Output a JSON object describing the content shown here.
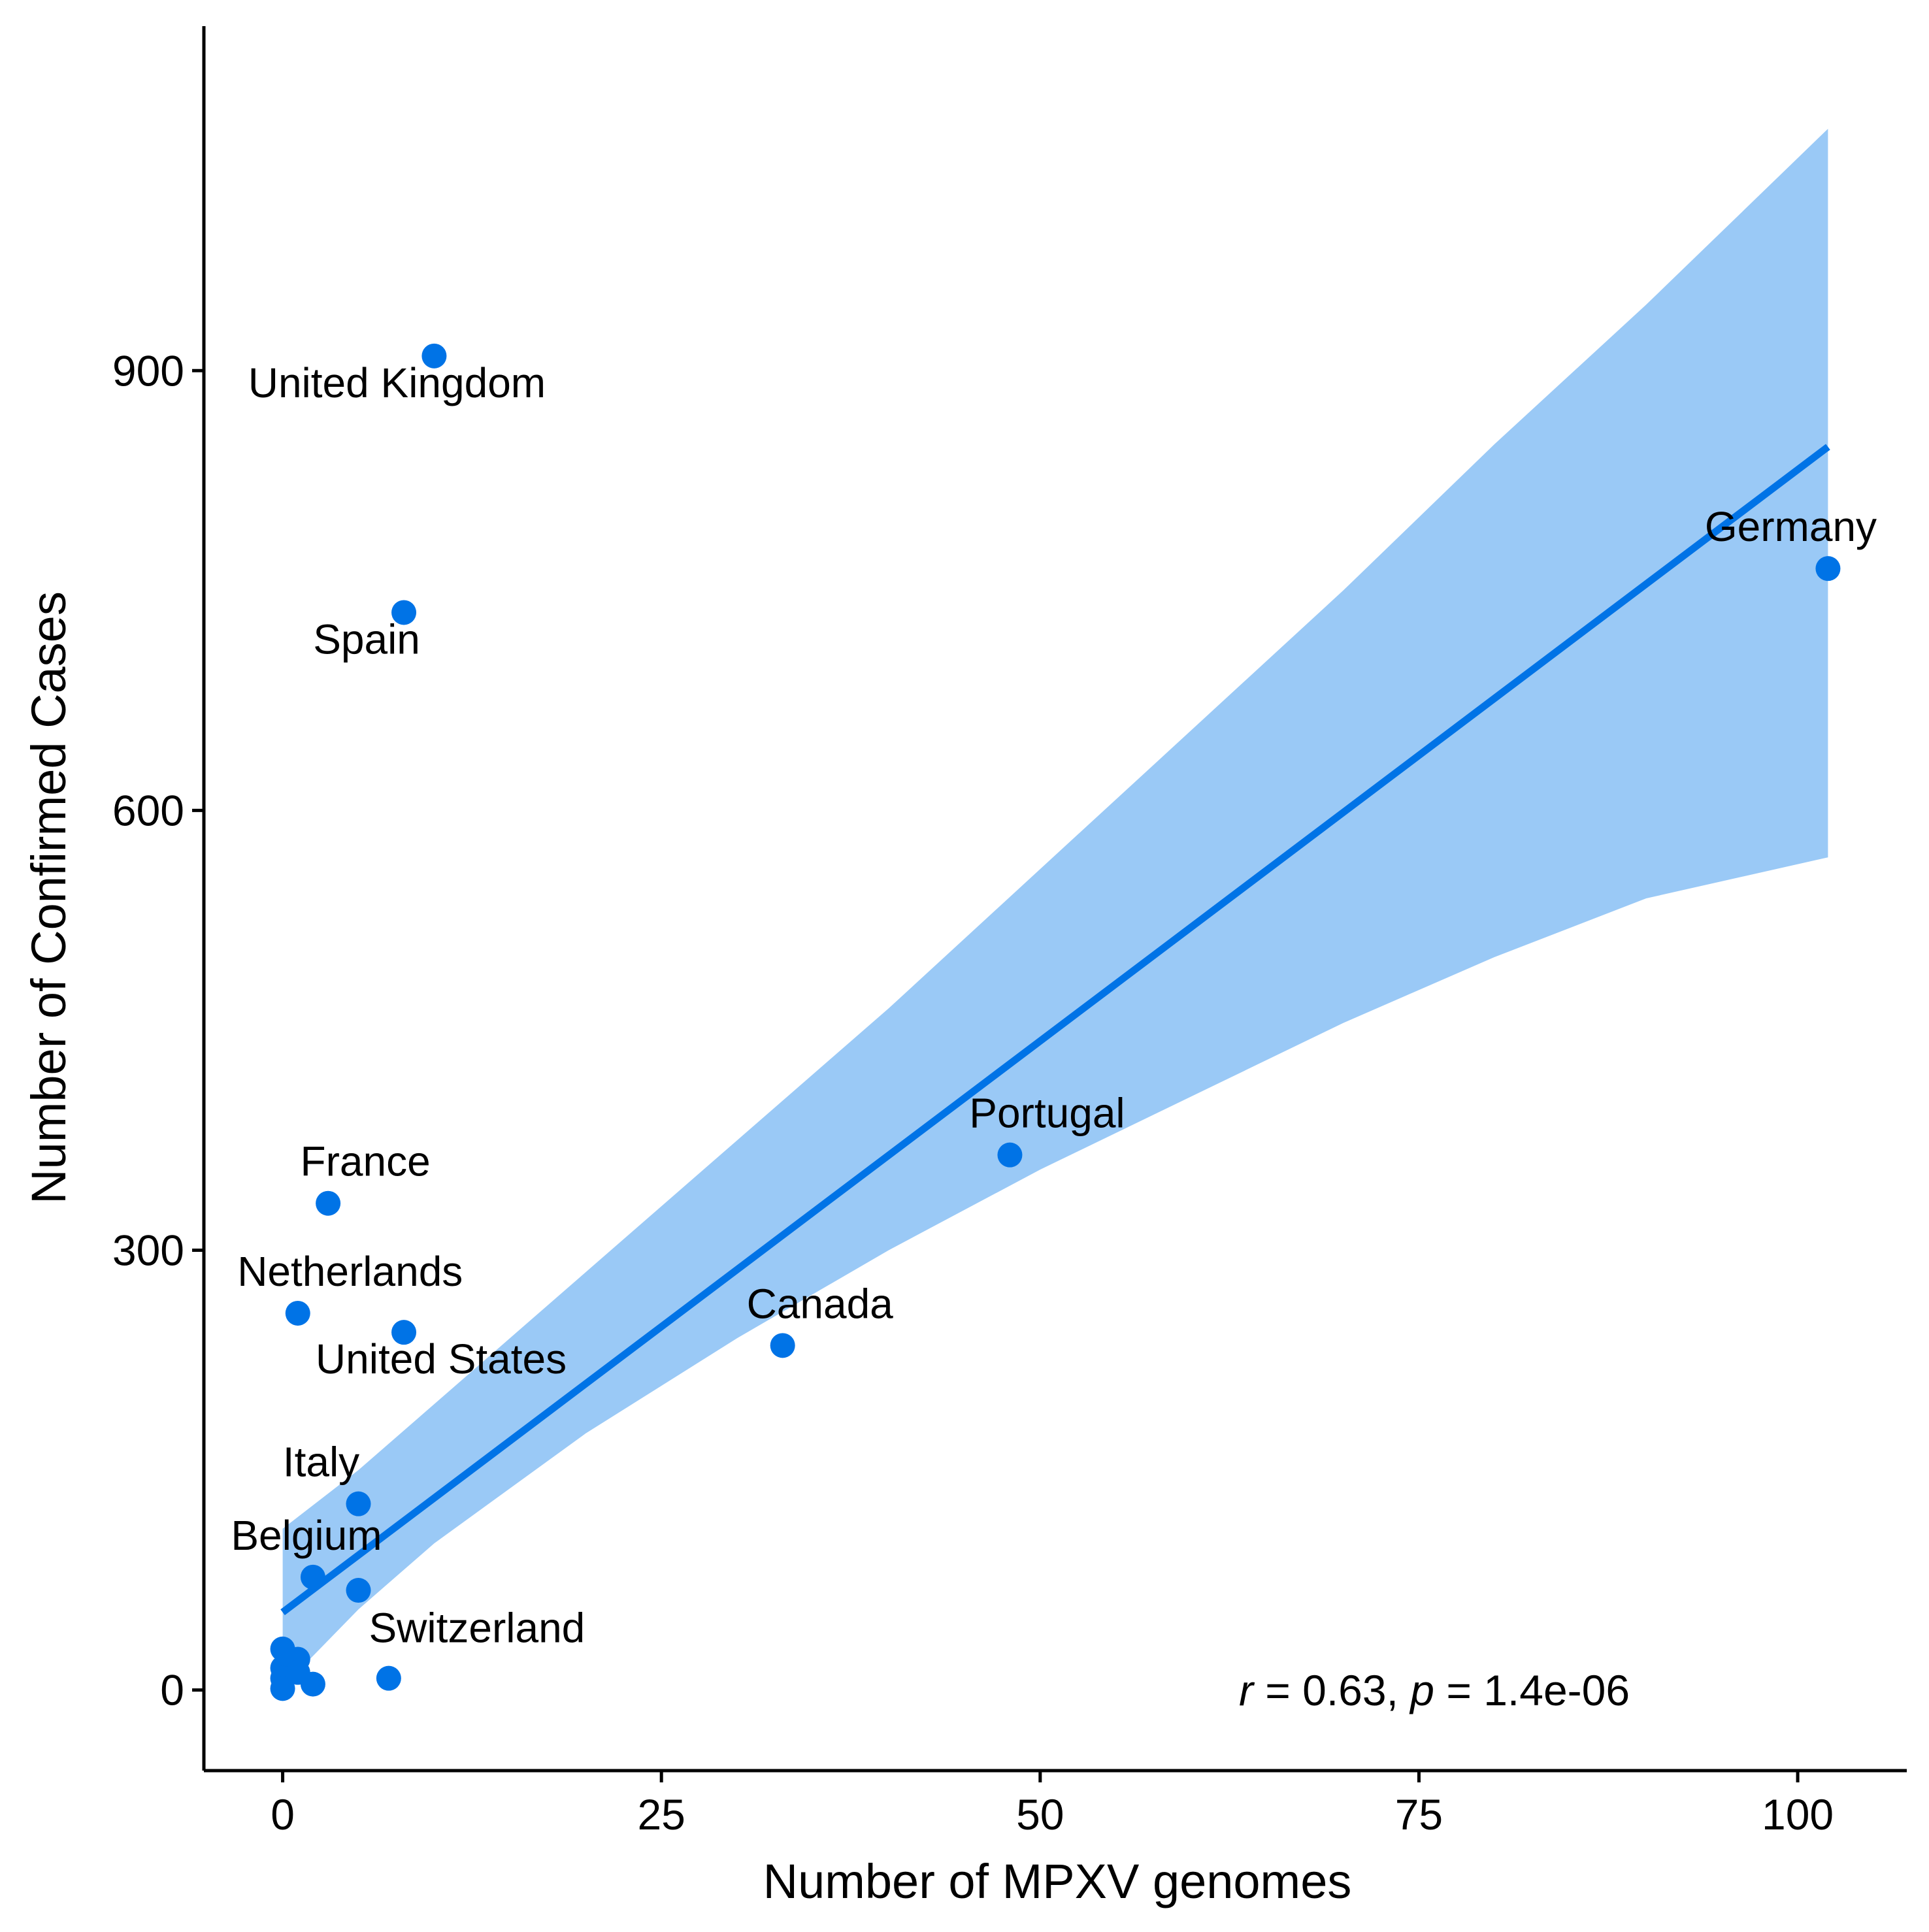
{
  "chart_data": {
    "type": "scatter",
    "title": "",
    "xlabel": "Number of MPXV genomes",
    "ylabel": "Number of Confirmed Cases",
    "xlim": [
      -5.2,
      107.2
    ],
    "ylim": [
      -55,
      1135
    ],
    "x_ticks": [
      0,
      25,
      50,
      75,
      100
    ],
    "x_tick_labels": [
      "0",
      "25",
      "50",
      "75",
      "100"
    ],
    "y_ticks": [
      0,
      300,
      600,
      900
    ],
    "y_tick_labels": [
      "0",
      "300",
      "600",
      "900"
    ],
    "grid": false,
    "legend": "none",
    "colors": {
      "points": "#0073e6",
      "line": "#0073e6",
      "band": "#9ac9f6",
      "axis": "#000000"
    },
    "points": [
      {
        "x": 10,
        "y": 910,
        "label": "United Kingdom"
      },
      {
        "x": 8,
        "y": 735,
        "label": "Spain"
      },
      {
        "x": 102,
        "y": 765,
        "label": "Germany"
      },
      {
        "x": 48,
        "y": 365,
        "label": "Portugal"
      },
      {
        "x": 3,
        "y": 332,
        "label": "France"
      },
      {
        "x": 1,
        "y": 257,
        "label": "Netherlands"
      },
      {
        "x": 8,
        "y": 244,
        "label": "United States"
      },
      {
        "x": 33,
        "y": 235,
        "label": "Canada"
      },
      {
        "x": 5,
        "y": 127,
        "label": "Italy"
      },
      {
        "x": 2,
        "y": 77,
        "label": "Belgium"
      },
      {
        "x": 5,
        "y": 68,
        "label": ""
      },
      {
        "x": 7,
        "y": 8,
        "label": "Switzerland"
      },
      {
        "x": 0,
        "y": 28,
        "label": ""
      },
      {
        "x": 1,
        "y": 21,
        "label": ""
      },
      {
        "x": 0,
        "y": 15,
        "label": ""
      },
      {
        "x": 1,
        "y": 12,
        "label": ""
      },
      {
        "x": 0,
        "y": 8,
        "label": ""
      },
      {
        "x": 2,
        "y": 4,
        "label": ""
      },
      {
        "x": 0,
        "y": 1,
        "label": ""
      }
    ],
    "fit_line": {
      "x": [
        0,
        102
      ],
      "y": [
        53,
        848
      ]
    },
    "confidence_band": {
      "x": [
        0,
        5,
        10,
        20,
        30,
        40,
        50,
        60,
        70,
        80,
        90,
        102
      ],
      "upper": [
        110,
        150,
        195,
        285,
        375,
        465,
        560,
        655,
        750,
        850,
        945,
        1065
      ],
      "lower": [
        2,
        55,
        100,
        175,
        240,
        300,
        355,
        405,
        455,
        500,
        540,
        568
      ]
    },
    "annotation": {
      "r_symbol": "r",
      "r_text": " = 0.63, ",
      "p_symbol": "p",
      "p_text": " = 1.4e-06"
    }
  }
}
